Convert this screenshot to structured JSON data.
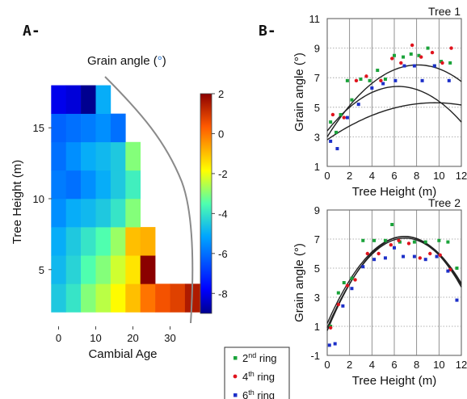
{
  "panel_labels": {
    "a": "A-",
    "b": "B-"
  },
  "chart_data": [
    {
      "type": "heatmap",
      "title": "Grain angle (°)",
      "title_text": "Grain angle (",
      "title_unit": "°",
      "title_close": ")",
      "xlabel": "Cambial Age",
      "ylabel": "Tree Height  (m)",
      "x_ticks": [
        0,
        10,
        20,
        30
      ],
      "y_ticks": [
        5,
        10,
        15
      ],
      "xlim": [
        -2,
        38
      ],
      "ylim": [
        1,
        19
      ],
      "cell_width": 4,
      "cell_height": 2,
      "x_starts": [
        -2,
        2,
        6,
        10,
        14,
        18,
        22,
        26,
        30,
        34
      ],
      "y_starts": [
        2,
        4,
        6,
        8,
        10,
        12,
        14,
        16
      ],
      "values": [
        [
          -4.5,
          -4.0,
          -3.0,
          -2.5,
          -1.8,
          -1.0,
          0.0,
          0.5,
          0.8,
          1.5
        ],
        [
          -4.8,
          -4.3,
          -3.5,
          -3.0,
          -2.3,
          -1.5,
          2.0,
          null,
          null,
          null
        ],
        [
          -5.0,
          -4.5,
          -4.0,
          -3.5,
          -2.8,
          -1.0,
          -0.8,
          null,
          null,
          null
        ],
        [
          -5.5,
          -5.0,
          -4.8,
          -4.5,
          -4.0,
          -3.0,
          null,
          null,
          null,
          null
        ],
        [
          -5.8,
          -6.0,
          -5.5,
          -5.0,
          -4.5,
          -3.8,
          null,
          null,
          null,
          null
        ],
        [
          -6.0,
          -5.5,
          -5.0,
          -4.8,
          -4.5,
          -3.0,
          null,
          null,
          null,
          null
        ],
        [
          -6.2,
          -6.0,
          -5.8,
          -5.5,
          -6.0,
          null,
          null,
          null,
          null,
          null
        ],
        [
          -8.0,
          -8.2,
          -9.0,
          -5.0,
          null,
          null,
          null,
          null,
          null,
          null
        ]
      ],
      "colorbar": {
        "min": -9,
        "max": 2,
        "ticks": [
          2,
          0,
          -2,
          -4,
          -6,
          -8
        ]
      },
      "colors": [
        "#00008f",
        "#0000ff",
        "#00a5ff",
        "#4fffaf",
        "#ffff00",
        "#ff5a00",
        "#8b0000"
      ]
    },
    {
      "type": "scatter",
      "title": "Tree 1",
      "xlabel": "Tree Height (m)",
      "ylabel": "Grain angle (°)",
      "xlim": [
        0,
        12
      ],
      "ylim": [
        1,
        11
      ],
      "x_ticks": [
        0,
        2,
        4,
        6,
        8,
        10,
        12
      ],
      "y_ticks": [
        1,
        3,
        5,
        7,
        9,
        11
      ],
      "grid": true,
      "series": [
        {
          "name": "2nd ring",
          "color": "#1aa33a",
          "marker": "square",
          "x": [
            0.3,
            0.8,
            1.2,
            1.8,
            2.2,
            3.0,
            3.8,
            4.5,
            5.2,
            6.0,
            6.8,
            7.5,
            8.2,
            9.0,
            9.6,
            10.2,
            11.0
          ],
          "y": [
            4.0,
            3.3,
            4.5,
            6.8,
            5.5,
            6.9,
            6.8,
            7.5,
            6.9,
            8.5,
            8.4,
            8.6,
            8.5,
            9.0,
            7.8,
            8.1,
            8.0
          ],
          "curve": [
            3.4,
            0.33,
            0.63,
            -0.04
          ]
        },
        {
          "name": "4th ring",
          "color": "#e0141e",
          "marker": "circle",
          "x": [
            0.5,
            1.5,
            2.6,
            3.5,
            4.8,
            5.8,
            6.6,
            7.6,
            8.4,
            9.4,
            10.3,
            11.1
          ],
          "y": [
            4.5,
            4.3,
            6.8,
            7.1,
            6.8,
            8.3,
            8.0,
            9.2,
            8.4,
            8.7,
            8.0,
            9.0
          ],
          "curve": [
            3.0,
            0.33,
            0.0,
            0.0
          ]
        },
        {
          "name": "6th ring",
          "color": "#1c2fc8",
          "marker": "square",
          "x": [
            0.3,
            0.9,
            1.8,
            2.8,
            4.0,
            5.0,
            6.1,
            6.9,
            7.8,
            8.5,
            9.6,
            10.9
          ],
          "y": [
            2.7,
            2.2,
            4.3,
            5.2,
            6.3,
            6.6,
            6.8,
            7.8,
            7.8,
            6.8,
            7.8,
            6.8
          ],
          "curve": [
            2.8,
            0.52,
            -0.027,
            0.0
          ]
        }
      ]
    },
    {
      "type": "scatter",
      "title": "Tree 2",
      "xlabel": "Tree Height (m)",
      "ylabel": "Grain angle (°)",
      "xlim": [
        0,
        12
      ],
      "ylim": [
        -1,
        9
      ],
      "x_ticks": [
        0,
        2,
        4,
        6,
        8,
        10,
        12
      ],
      "y_ticks": [
        -1,
        1,
        3,
        5,
        7,
        9
      ],
      "grid": true,
      "series": [
        {
          "name": "2nd ring",
          "color": "#1aa33a",
          "marker": "square",
          "x": [
            0.3,
            1.0,
            1.5,
            2.2,
            3.2,
            4.2,
            5.2,
            5.8,
            6.5,
            7.8,
            8.8,
            10.0,
            10.8,
            11.6
          ],
          "y": [
            1.0,
            3.3,
            4.0,
            4.3,
            6.9,
            6.9,
            6.9,
            8.0,
            6.8,
            6.8,
            6.8,
            6.9,
            6.8,
            5.0
          ],
          "curve": [
            1.2,
            1.73,
            -0.125,
            0.0
          ]
        },
        {
          "name": "4th ring",
          "color": "#e0141e",
          "marker": "circle",
          "x": [
            0.3,
            1.0,
            1.8,
            2.5,
            3.6,
            4.6,
            5.7,
            6.4,
            7.3,
            8.3,
            9.2,
            10.1,
            11.0
          ],
          "y": [
            0.9,
            2.5,
            3.8,
            4.2,
            6.0,
            6.0,
            6.6,
            6.9,
            6.7,
            5.7,
            6.0,
            5.9,
            4.9
          ],
          "curve": [
            0.9,
            1.77,
            -0.127,
            0.0
          ]
        },
        {
          "name": "6th ring",
          "color": "#1c2fc8",
          "marker": "square",
          "x": [
            0.2,
            0.7,
            1.4,
            2.2,
            3.2,
            4.2,
            5.2,
            6.0,
            6.8,
            7.8,
            8.8,
            9.8,
            10.8,
            11.6
          ],
          "y": [
            -0.3,
            -0.2,
            2.4,
            3.6,
            5.1,
            5.6,
            5.7,
            6.4,
            5.8,
            5.8,
            5.6,
            5.8,
            4.8,
            2.8
          ],
          "curve": [
            0.7,
            1.87,
            -0.135,
            0.0
          ]
        }
      ]
    }
  ],
  "legend": {
    "items": [
      {
        "label": "2nd ring",
        "ordinal_number": "2",
        "ordinal_suffix": "nd",
        "word": " ring",
        "color": "#1aa33a",
        "marker": "square"
      },
      {
        "label": "4th ring",
        "ordinal_number": "4",
        "ordinal_suffix": "th",
        "word": " ring",
        "color": "#e0141e",
        "marker": "circle"
      },
      {
        "label": "6th ring",
        "ordinal_number": "6",
        "ordinal_suffix": "th",
        "word": " ring",
        "color": "#1c2fc8",
        "marker": "square"
      }
    ]
  }
}
